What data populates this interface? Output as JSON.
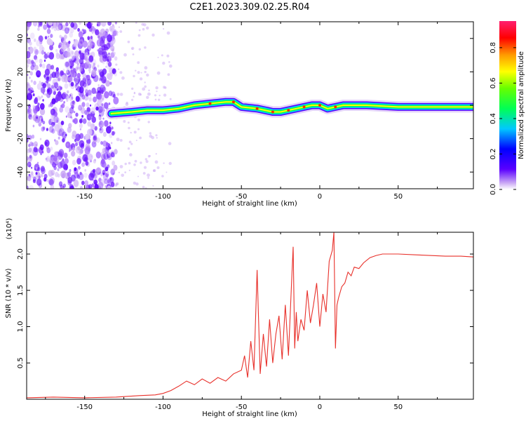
{
  "chart_data": [
    {
      "type": "heatmap",
      "title": "C2E1.2023.309.02.25.R04",
      "xlabel": "Height of straight line (km)",
      "ylabel": "Frequency (Hz)",
      "xlim": [
        -187,
        98
      ],
      "ylim": [
        -50,
        50
      ],
      "xticks": [
        -150,
        -100,
        -50,
        0,
        50
      ],
      "yticks": [
        -40,
        -20,
        0,
        20,
        40
      ],
      "colorbar": {
        "label": "Normalized spectral amplitude",
        "range": [
          0,
          0.95
        ],
        "ticks": [
          0.0,
          0.2,
          0.4,
          0.6,
          0.8
        ],
        "colormap": "rainbow"
      },
      "ridge": {
        "x": [
          -133,
          -120,
          -110,
          -100,
          -90,
          -80,
          -70,
          -60,
          -55,
          -50,
          -40,
          -35,
          -30,
          -25,
          -20,
          -15,
          -10,
          -5,
          0,
          5,
          10,
          15,
          20,
          30,
          50,
          70,
          98
        ],
        "y": [
          -5,
          -4,
          -3,
          -3,
          -2,
          0,
          1,
          2,
          2,
          -1,
          -2,
          -3,
          -4,
          -4,
          -3,
          -2,
          -1,
          0,
          0,
          -2,
          -1,
          0,
          0,
          0,
          -1,
          -1,
          -1
        ]
      },
      "noise_region": {
        "x_start": -187,
        "x_end": -130
      }
    },
    {
      "type": "line",
      "xlabel": "Height of straight line (km)",
      "ylabel": "SNR (10 * v/v)",
      "multiplier_label": "(x10⁴)",
      "xlim": [
        -187,
        98
      ],
      "ylim": [
        0,
        2.3
      ],
      "xticks": [
        -150,
        -100,
        -50,
        0,
        50
      ],
      "yticks": [
        0.5,
        1.0,
        1.5,
        2.0
      ],
      "series": [
        {
          "color": "#e8302a",
          "x": [
            -187,
            -170,
            -150,
            -130,
            -115,
            -105,
            -100,
            -95,
            -90,
            -85,
            -80,
            -75,
            -70,
            -65,
            -60,
            -55,
            -50,
            -48,
            -46,
            -44,
            -42,
            -40,
            -38,
            -36,
            -34,
            -32,
            -30,
            -28,
            -26,
            -24,
            -22,
            -20,
            -18,
            -17,
            -16,
            -15,
            -14,
            -12,
            -10,
            -8,
            -6,
            -4,
            -2,
            0,
            2,
            4,
            6,
            8,
            9,
            10,
            11,
            12,
            14,
            16,
            18,
            20,
            22,
            25,
            28,
            32,
            36,
            40,
            50,
            60,
            70,
            80,
            90,
            98
          ],
          "y": [
            0.02,
            0.03,
            0.02,
            0.03,
            0.05,
            0.06,
            0.08,
            0.12,
            0.18,
            0.25,
            0.2,
            0.28,
            0.22,
            0.3,
            0.25,
            0.35,
            0.4,
            0.6,
            0.3,
            0.8,
            0.4,
            1.78,
            0.35,
            0.9,
            0.45,
            1.1,
            0.5,
            0.9,
            1.15,
            0.55,
            1.3,
            0.6,
            1.6,
            2.1,
            0.7,
            1.2,
            0.8,
            1.1,
            0.95,
            1.5,
            1.05,
            1.3,
            1.6,
            1.0,
            1.45,
            1.2,
            1.9,
            2.05,
            2.3,
            0.7,
            1.3,
            1.4,
            1.55,
            1.6,
            1.75,
            1.7,
            1.82,
            1.8,
            1.88,
            1.95,
            1.98,
            2.0,
            2.0,
            1.99,
            1.98,
            1.97,
            1.97,
            1.96
          ]
        }
      ]
    }
  ]
}
